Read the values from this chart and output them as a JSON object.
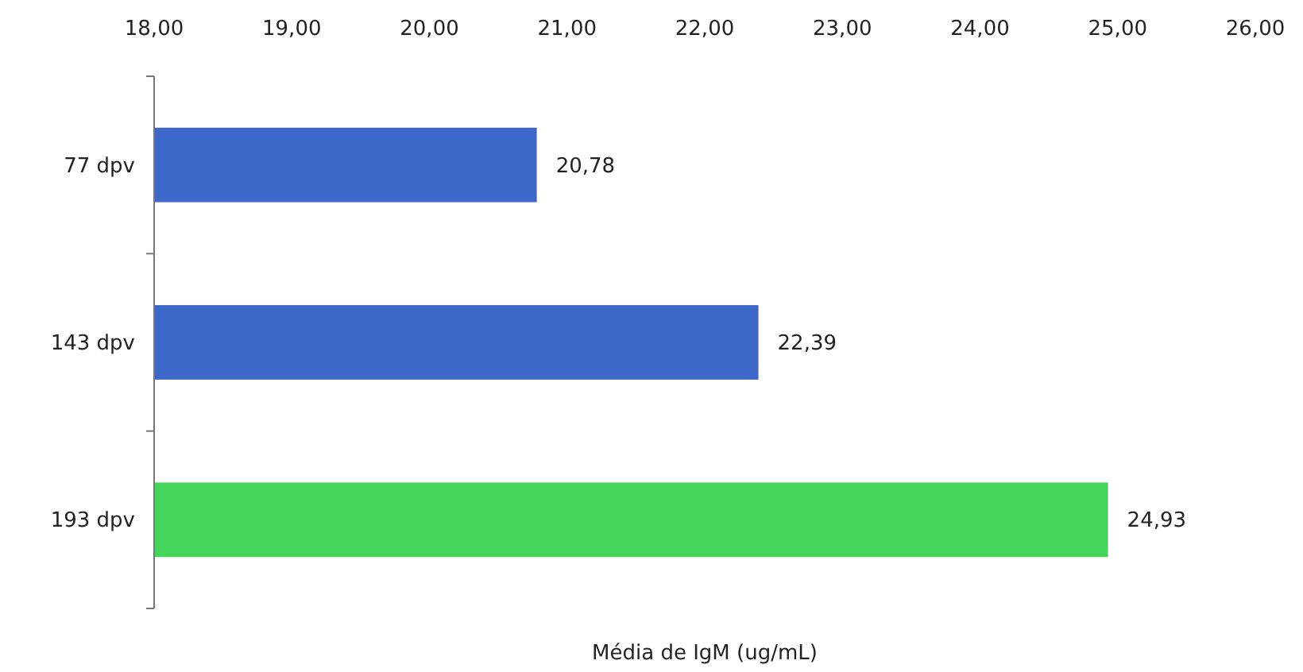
{
  "chart_data": {
    "type": "bar",
    "orientation": "horizontal",
    "categories": [
      "77 dpv",
      "143 dpv",
      "193 dpv"
    ],
    "values": [
      20.78,
      22.39,
      24.93
    ],
    "colors": [
      "#3d68c9",
      "#3d68c9",
      "#44d55a"
    ],
    "value_labels": [
      "20,78",
      "22,39",
      "24,93"
    ],
    "xlabel": "Média de IgM (ug/mL)",
    "xlim": [
      18,
      26
    ],
    "xticks": [
      {
        "value": 18,
        "label": "18,00"
      },
      {
        "value": 19,
        "label": "19,00"
      },
      {
        "value": 20,
        "label": "20,00"
      },
      {
        "value": 21,
        "label": "21,00"
      },
      {
        "value": 22,
        "label": "22,00"
      },
      {
        "value": 23,
        "label": "23,00"
      },
      {
        "value": 24,
        "label": "24,00"
      },
      {
        "value": 25,
        "label": "25,00"
      },
      {
        "value": 26,
        "label": "26,00"
      }
    ],
    "grid": false
  }
}
